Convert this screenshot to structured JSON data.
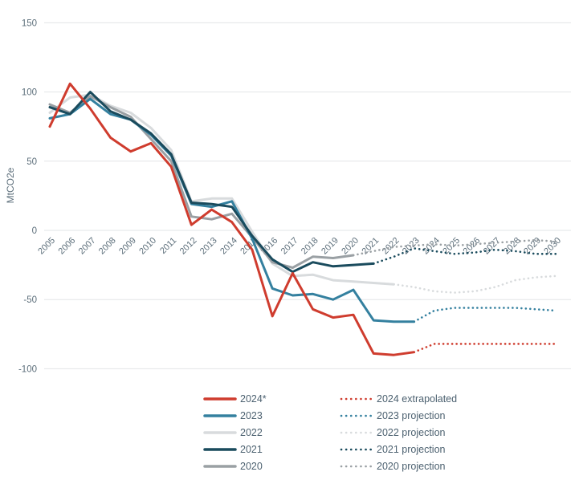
{
  "chart_data": {
    "type": "line",
    "title": "",
    "ylabel": "MtCO2e",
    "ylim": [
      -100,
      150
    ],
    "yticks": [
      150,
      100,
      50,
      0,
      -50,
      -100
    ],
    "grid": "horizontal-only",
    "legend_position": "bottom",
    "categories": [
      "2005",
      "2006",
      "2007",
      "2008",
      "2009",
      "2010",
      "2011",
      "2012",
      "2013",
      "2014",
      "2015",
      "2016",
      "2017",
      "2018",
      "2019",
      "2020",
      "2021",
      "2022",
      "2023",
      "2024",
      "2025",
      "2026",
      "2027",
      "2028",
      "2029",
      "2030"
    ],
    "series": [
      {
        "name": "2022",
        "style": "solid",
        "color": "#d8dbdd",
        "values": [
          85,
          96,
          98,
          90,
          85,
          74,
          58,
          21,
          23,
          23,
          -1,
          -24,
          -33,
          -32,
          -36,
          -37,
          -38,
          -39,
          null,
          null,
          null,
          null,
          null,
          null,
          null,
          null
        ]
      },
      {
        "name": "2020",
        "style": "solid",
        "color": "#9aa0a4",
        "values": [
          91,
          85,
          97,
          89,
          82,
          66,
          50,
          10,
          8,
          12,
          -5,
          -23,
          -27,
          -19,
          -20,
          -18,
          null,
          null,
          null,
          null,
          null,
          null,
          null,
          null,
          null,
          null
        ]
      },
      {
        "name": "2023",
        "style": "solid",
        "color": "#34809f",
        "values": [
          81,
          84,
          95,
          84,
          80,
          69,
          54,
          19,
          17,
          21,
          -6,
          -42,
          -47,
          -46,
          -50,
          -43,
          -65,
          -66,
          -66,
          null,
          null,
          null,
          null,
          null,
          null,
          null
        ]
      },
      {
        "name": "2021",
        "style": "solid",
        "color": "#1a4b5d",
        "values": [
          89,
          84,
          100,
          86,
          80,
          70,
          55,
          20,
          19,
          17,
          -4,
          -21,
          -30,
          -23,
          -26,
          -25,
          -24,
          null,
          null,
          null,
          null,
          null,
          null,
          null,
          null,
          null
        ]
      },
      {
        "name": "2024*",
        "style": "solid",
        "color": "#cf3c2e",
        "values": [
          75,
          106,
          88,
          67,
          57,
          63,
          46,
          4,
          15,
          6,
          -14,
          -62,
          -31,
          -57,
          -63,
          -61,
          -89,
          -90,
          -88,
          null,
          null,
          null,
          null,
          null,
          null,
          null
        ]
      },
      {
        "name": "2022 projection",
        "style": "dotted",
        "color": "#d8dbdd",
        "values": [
          null,
          null,
          null,
          null,
          null,
          null,
          null,
          null,
          null,
          null,
          null,
          null,
          null,
          null,
          null,
          null,
          null,
          -39,
          -41,
          -44,
          -45,
          -44,
          -41,
          -36,
          -34,
          -33
        ]
      },
      {
        "name": "2020 projection",
        "style": "dotted",
        "color": "#9aa0a4",
        "values": [
          null,
          null,
          null,
          null,
          null,
          null,
          null,
          null,
          null,
          null,
          null,
          null,
          null,
          null,
          null,
          -18,
          -15,
          -12,
          -11,
          -10,
          -11,
          -10,
          -9,
          -8,
          -7,
          -8
        ]
      },
      {
        "name": "2023 projection",
        "style": "dotted",
        "color": "#34809f",
        "values": [
          null,
          null,
          null,
          null,
          null,
          null,
          null,
          null,
          null,
          null,
          null,
          null,
          null,
          null,
          null,
          null,
          null,
          null,
          -66,
          -58,
          -56,
          -56,
          -56,
          -56,
          -57,
          -58
        ]
      },
      {
        "name": "2021 projection",
        "style": "dotted",
        "color": "#1a4b5d",
        "values": [
          null,
          null,
          null,
          null,
          null,
          null,
          null,
          null,
          null,
          null,
          null,
          null,
          null,
          null,
          null,
          null,
          -24,
          -19,
          -13,
          -15,
          -17,
          -16,
          -14,
          -15,
          -17,
          -17
        ]
      },
      {
        "name": "2024 extrapolated",
        "style": "dotted",
        "color": "#cf3c2e",
        "values": [
          null,
          null,
          null,
          null,
          null,
          null,
          null,
          null,
          null,
          null,
          null,
          null,
          null,
          null,
          null,
          null,
          null,
          null,
          -88,
          -82,
          -82,
          -82,
          -82,
          -82,
          -82,
          -82
        ]
      }
    ]
  },
  "legend": {
    "rows": [
      {
        "solid_label": "2024*",
        "dotted_label": "2024 extrapolated",
        "color": "#cf3c2e"
      },
      {
        "solid_label": "2023",
        "dotted_label": "2023 projection",
        "color": "#34809f"
      },
      {
        "solid_label": "2022",
        "dotted_label": "2022 projection",
        "color": "#d8dbdd"
      },
      {
        "solid_label": "2021",
        "dotted_label": "2021 projection",
        "color": "#1a4b5d"
      },
      {
        "solid_label": "2020",
        "dotted_label": "2020 projection",
        "color": "#9aa0a4"
      }
    ]
  },
  "style": {
    "gridline_color": "#e2e5e7",
    "tick_text_color": "#5d6f7b",
    "legend_text_color": "#4c6170",
    "background": "#ffffff"
  }
}
